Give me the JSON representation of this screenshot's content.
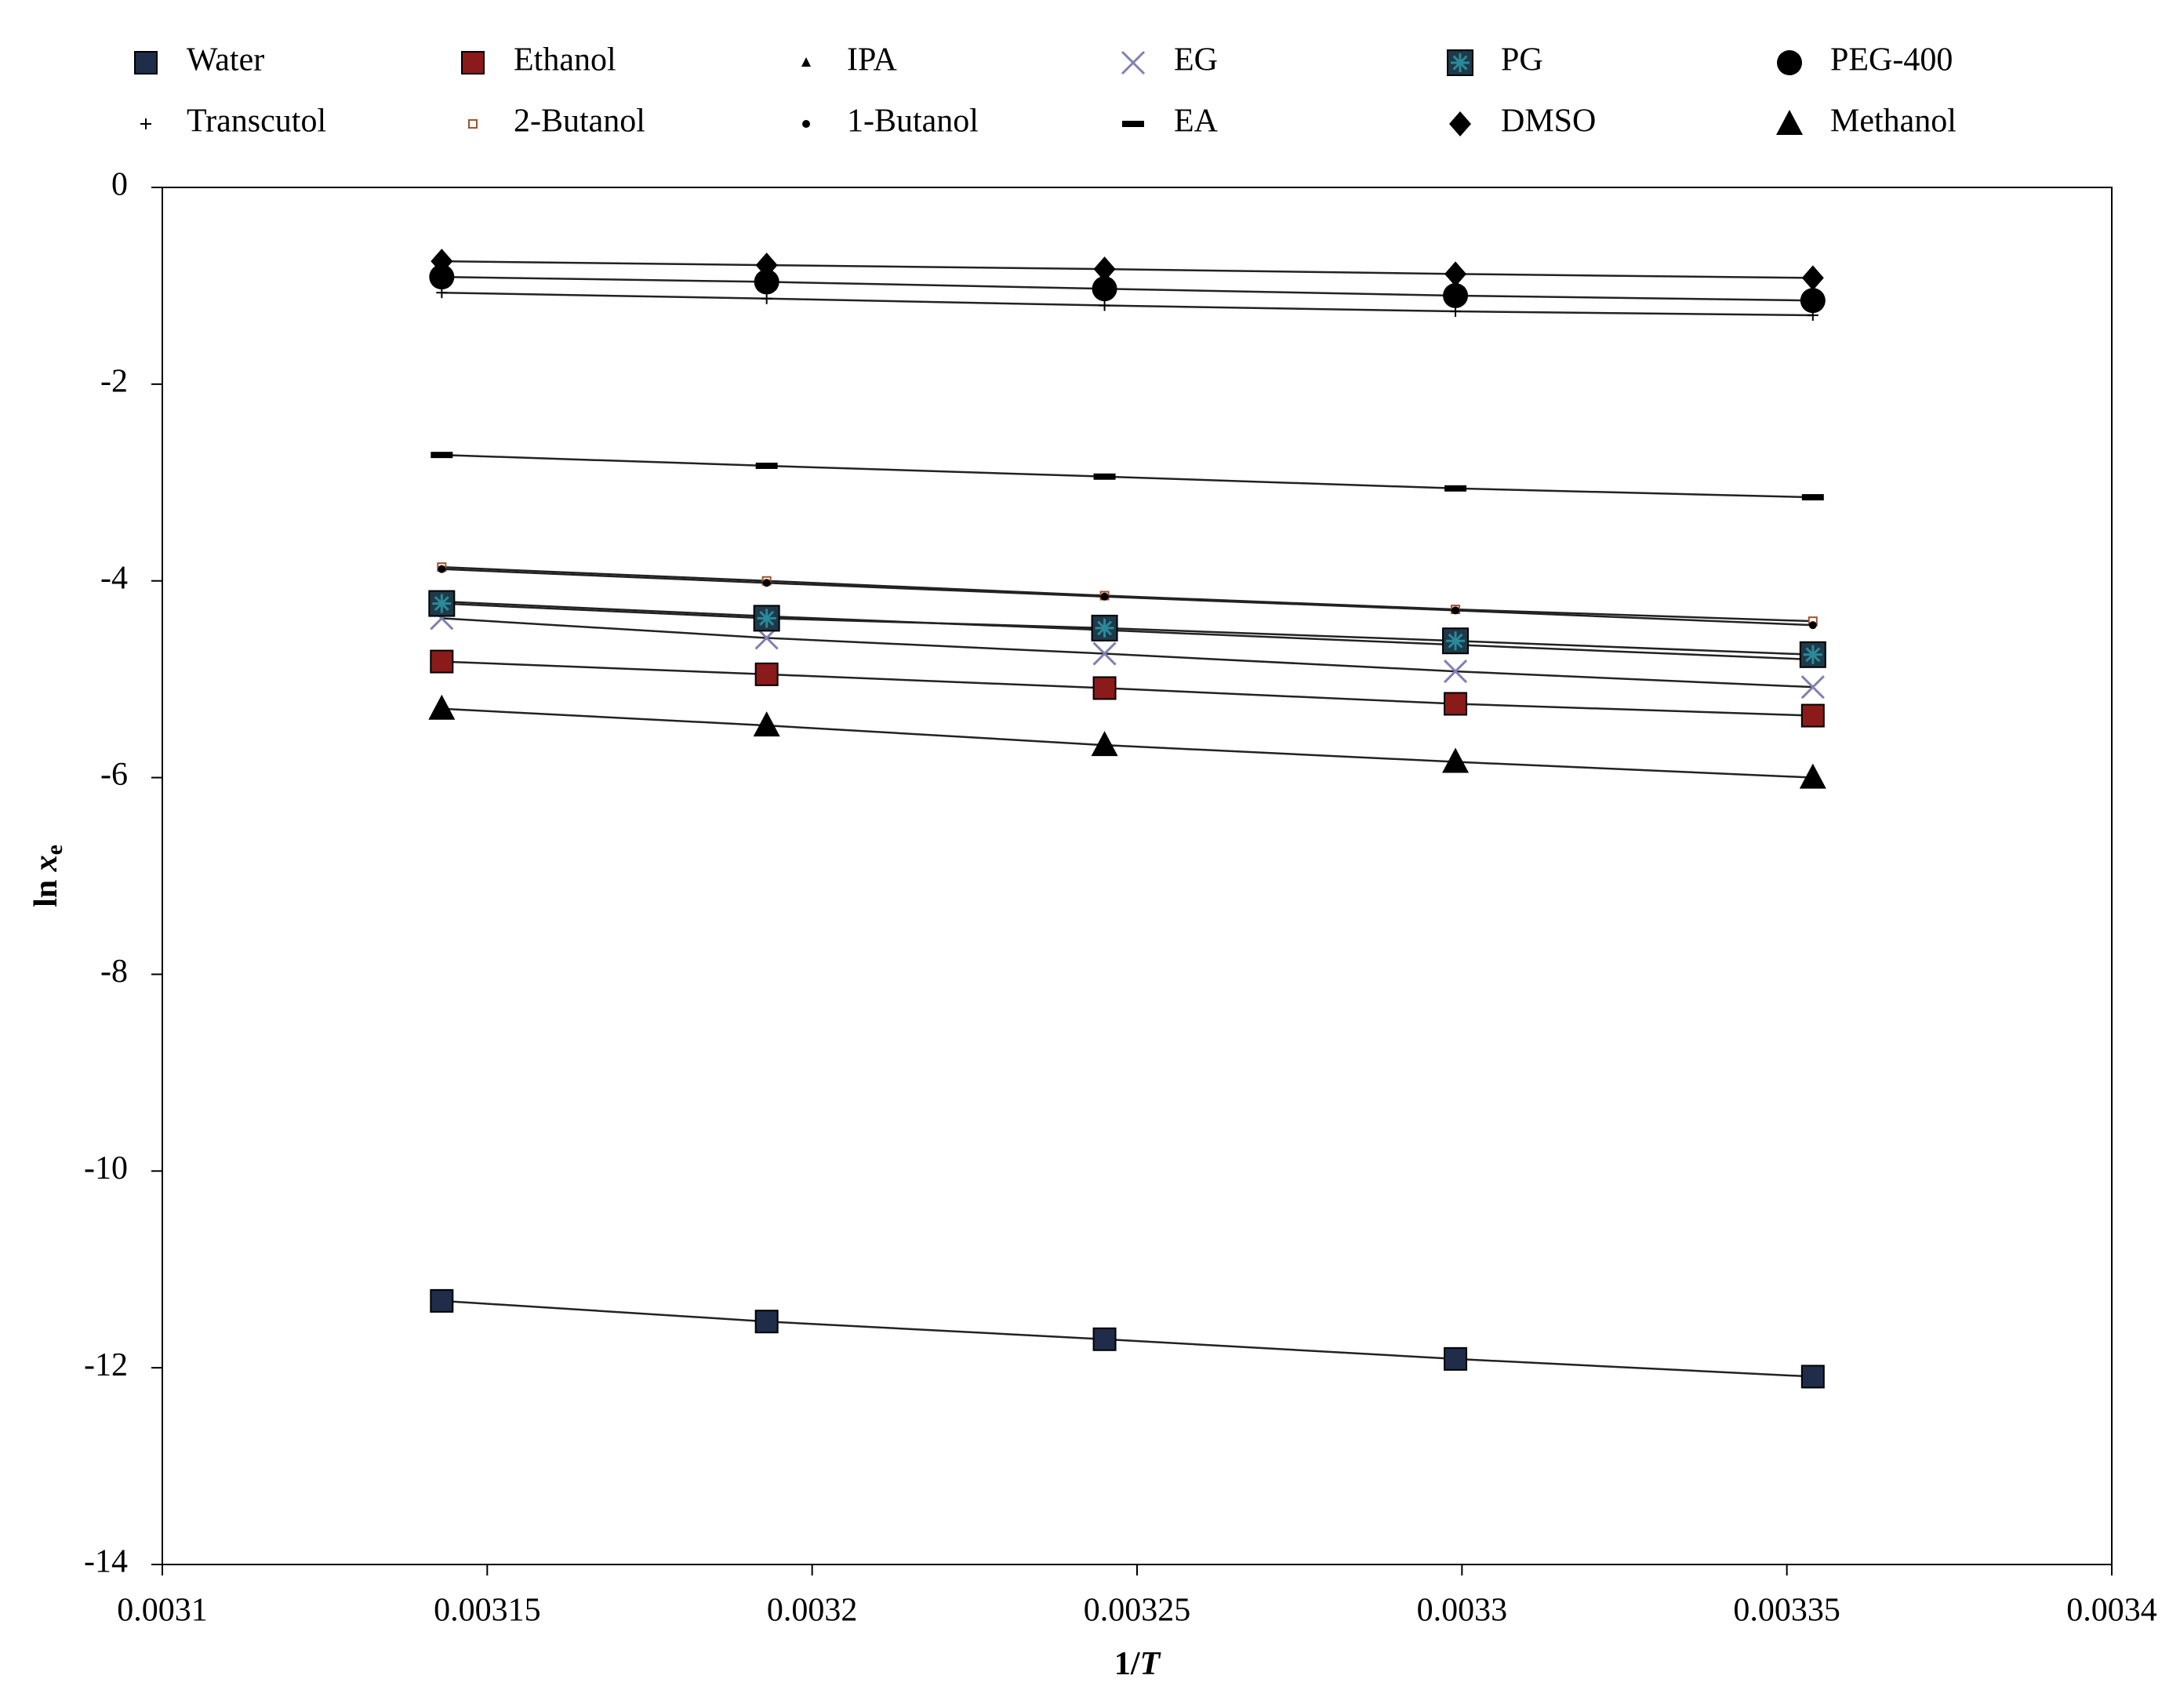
{
  "chart_data": {
    "type": "line",
    "xlabel": {
      "prefix": "1/",
      "var": "T"
    },
    "ylabel": {
      "prefix": "ln ",
      "var": "x",
      "sub": "e"
    },
    "x": [
      0.003143,
      0.003193,
      0.003245,
      0.003299,
      0.003354
    ],
    "xlim": [
      0.0031,
      0.0034
    ],
    "xticks": [
      0.0031,
      0.00315,
      0.0032,
      0.00325,
      0.0033,
      0.00335,
      0.0034
    ],
    "ylim": [
      -14,
      0
    ],
    "yticks": [
      0,
      -2,
      -4,
      -6,
      -8,
      -10,
      -12,
      -14
    ],
    "grid": false,
    "legend": "top",
    "series": [
      {
        "name": "Water",
        "color": "#1f2d4a",
        "marker": "square",
        "values": [
          -11.32,
          -11.53,
          -11.71,
          -11.91,
          -12.09
        ]
      },
      {
        "name": "Ethanol",
        "color": "#8b1a1a",
        "marker": "square",
        "values": [
          -4.82,
          -4.95,
          -5.09,
          -5.25,
          -5.37
        ]
      },
      {
        "name": "IPA",
        "color": "#000000",
        "marker": "small-triangle",
        "values": [
          -4.21,
          -4.36,
          -4.5,
          -4.65,
          -4.8
        ]
      },
      {
        "name": "EG",
        "color": "#8080b0",
        "marker": "cross",
        "values": [
          -4.38,
          -4.58,
          -4.74,
          -4.92,
          -5.08
        ]
      },
      {
        "name": "PG",
        "color": "#2a8a9a",
        "marker": "star-square",
        "values": [
          -4.23,
          -4.38,
          -4.48,
          -4.61,
          -4.75
        ]
      },
      {
        "name": "PEG-400",
        "color": "#000000",
        "marker": "circle",
        "values": [
          -0.91,
          -0.96,
          -1.03,
          -1.1,
          -1.15
        ]
      },
      {
        "name": "Transcutol",
        "color": "#000000",
        "marker": "plus",
        "values": [
          -1.07,
          -1.13,
          -1.2,
          -1.26,
          -1.3
        ]
      },
      {
        "name": "2-Butanol",
        "color": "#a0522d",
        "marker": "small-square",
        "values": [
          -3.86,
          -4.0,
          -4.15,
          -4.29,
          -4.41
        ]
      },
      {
        "name": "1-Butanol",
        "color": "#000000",
        "marker": "dot",
        "values": [
          -3.88,
          -4.02,
          -4.16,
          -4.3,
          -4.45
        ]
      },
      {
        "name": "EA",
        "color": "#000000",
        "marker": "dash",
        "values": [
          -2.72,
          -2.83,
          -2.94,
          -3.06,
          -3.15
        ]
      },
      {
        "name": "DMSO",
        "color": "#000000",
        "marker": "diamond",
        "values": [
          -0.75,
          -0.79,
          -0.83,
          -0.88,
          -0.92
        ]
      },
      {
        "name": "Methanol",
        "color": "#000000",
        "marker": "triangle",
        "values": [
          -5.3,
          -5.47,
          -5.67,
          -5.84,
          -6.0
        ]
      }
    ]
  }
}
